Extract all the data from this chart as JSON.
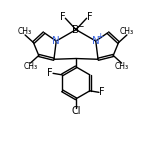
{
  "bg_color": "#ffffff",
  "N_color": "#4169e1",
  "bond_color": "#000000",
  "bond_width": 1.0,
  "figsize": [
    1.52,
    1.52
  ],
  "dpi": 100,
  "xlim": [
    0,
    10
  ],
  "ylim": [
    0,
    10
  ],
  "Bx": 5.0,
  "By": 8.05,
  "NLx": 3.7,
  "NLy": 7.3,
  "NRx": 6.3,
  "NRy": 7.3,
  "meso_x": 5.0,
  "meso_y": 6.15,
  "C1Lx": 2.9,
  "C1Ly": 7.85,
  "C2Lx": 2.2,
  "C2Ly": 7.2,
  "C3Lx": 2.55,
  "C3Ly": 6.35,
  "C4Lx": 3.55,
  "C4Ly": 6.1,
  "C1Rx": 7.1,
  "C1Ry": 7.85,
  "C2Rx": 7.8,
  "C2Ry": 7.2,
  "C3Rx": 7.45,
  "C3Ry": 6.35,
  "C4Rx": 6.45,
  "C4Ry": 6.1,
  "FLx": 4.3,
  "FLy": 8.8,
  "FRx": 5.7,
  "FRy": 8.8,
  "RC_x": 5.0,
  "RC_y": 4.55,
  "ring_r": 1.05
}
